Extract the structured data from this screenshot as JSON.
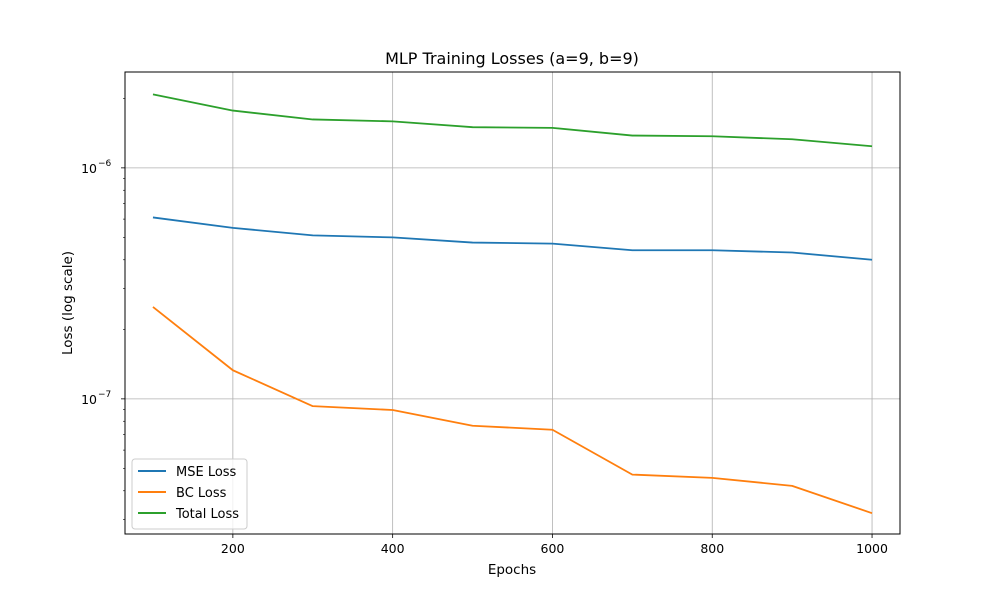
{
  "chart_data": {
    "type": "line",
    "title": "MLP Training Losses (a=9, b=9)",
    "xlabel": "Epochs",
    "ylabel": "Loss (log scale)",
    "y_scale": "log",
    "grid": true,
    "legend_position": "lower-left",
    "xlim": [
      65,
      1035
    ],
    "ylim": [
      2.6e-08,
      2.6e-06
    ],
    "x_ticks": [
      200,
      400,
      600,
      800,
      1000
    ],
    "x_tick_labels": [
      "200",
      "400",
      "600",
      "800",
      "1000"
    ],
    "y_ticks": [
      1e-07,
      1e-06
    ],
    "y_tick_labels_base": [
      "10",
      "10"
    ],
    "y_tick_labels_exp": [
      "−7",
      "−6"
    ],
    "x": [
      100,
      200,
      300,
      400,
      500,
      600,
      700,
      800,
      900,
      1000
    ],
    "series": [
      {
        "name": "MSE Loss",
        "color": "#1f77b4",
        "values": [
          6.1e-07,
          5.5e-07,
          5.1e-07,
          5e-07,
          4.75e-07,
          4.7e-07,
          4.4e-07,
          4.4e-07,
          4.3e-07,
          4e-07
        ]
      },
      {
        "name": "BC Loss",
        "color": "#ff7f0e",
        "values": [
          2.5e-07,
          1.33e-07,
          9.3e-08,
          8.95e-08,
          7.65e-08,
          7.35e-08,
          4.7e-08,
          4.55e-08,
          4.2e-08,
          3.2e-08
        ]
      },
      {
        "name": "Total Loss",
        "color": "#2ca02c",
        "values": [
          2.08e-06,
          1.77e-06,
          1.62e-06,
          1.59e-06,
          1.5e-06,
          1.49e-06,
          1.38e-06,
          1.37e-06,
          1.33e-06,
          1.24e-06
        ]
      }
    ]
  }
}
